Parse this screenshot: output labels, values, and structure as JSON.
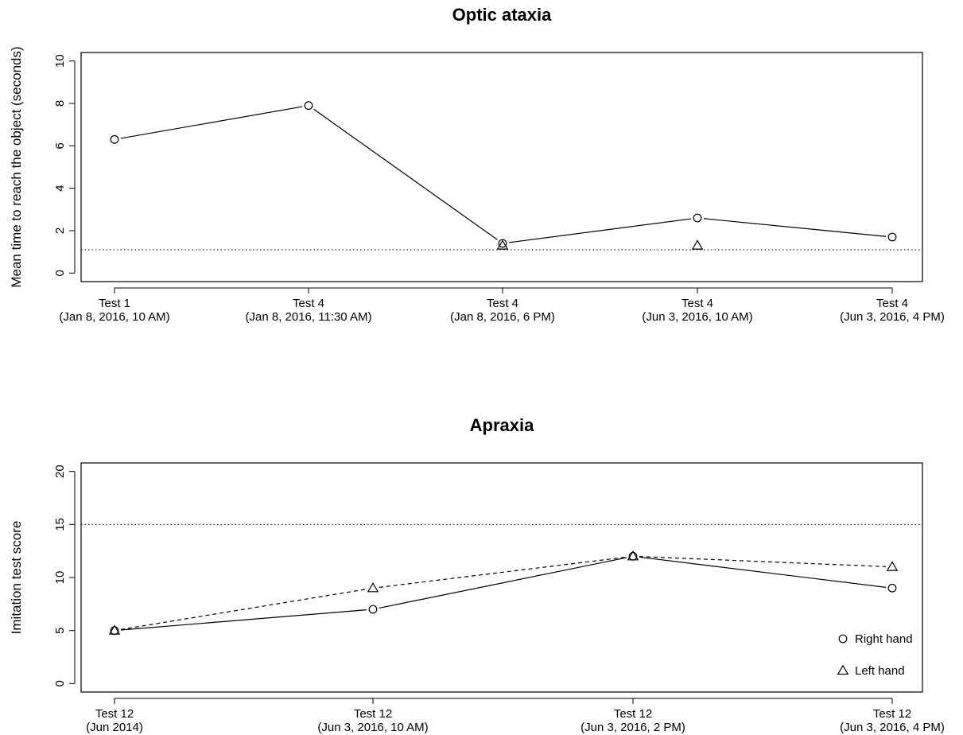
{
  "chart_data": [
    {
      "type": "line",
      "title": "Optic ataxia",
      "xlabel": "",
      "ylabel": "Mean time to reach the object (seconds)",
      "categories": [
        [
          "Test 1",
          "(Jan 8, 2016, 10 AM)"
        ],
        [
          "Test 4",
          "(Jan 8, 2016, 11:30 AM)"
        ],
        [
          "Test 4",
          "(Jan 8, 2016, 6 PM)"
        ],
        [
          "Test 4",
          "(Jun 3, 2016, 10 AM)"
        ],
        [
          "Test 4",
          "(Jun 3, 2016, 4 PM)"
        ]
      ],
      "ylim": [
        0,
        10
      ],
      "yticks": [
        0,
        2,
        4,
        6,
        8,
        10
      ],
      "series": [
        {
          "name": "Right hand",
          "marker": "circle",
          "line": "solid",
          "values": [
            6.3,
            7.9,
            1.4,
            2.6,
            1.7
          ]
        },
        {
          "name": "Left hand",
          "marker": "triangle",
          "line": "none",
          "values": [
            null,
            null,
            1.3,
            1.3,
            null
          ]
        }
      ],
      "reference_line": {
        "value": 1.1,
        "style": "dotted"
      },
      "grid": false
    },
    {
      "type": "line",
      "title": "Apraxia",
      "xlabel": "",
      "ylabel": "Imitation test score",
      "categories": [
        [
          "Test 12",
          "(Jun 2014)"
        ],
        [
          "Test 12",
          "(Jun 3, 2016, 10 AM)"
        ],
        [
          "Test 12",
          "(Jun 3, 2016, 2 PM)"
        ],
        [
          "Test 12",
          "(Jun 3, 2016, 4 PM)"
        ]
      ],
      "ylim": [
        0,
        20
      ],
      "yticks": [
        0,
        5,
        10,
        15,
        20
      ],
      "series": [
        {
          "name": "Right hand",
          "marker": "circle",
          "line": "solid",
          "values": [
            5,
            7,
            12,
            9
          ]
        },
        {
          "name": "Left hand",
          "marker": "triangle",
          "line": "dashed",
          "values": [
            5,
            9,
            12,
            11
          ]
        }
      ],
      "reference_line": {
        "value": 15,
        "style": "dotted"
      },
      "legend": {
        "position": "bottom-right",
        "entries": [
          {
            "label": "Right hand",
            "marker": "circle"
          },
          {
            "label": "Left hand",
            "marker": "triangle"
          }
        ]
      },
      "grid": false
    }
  ]
}
